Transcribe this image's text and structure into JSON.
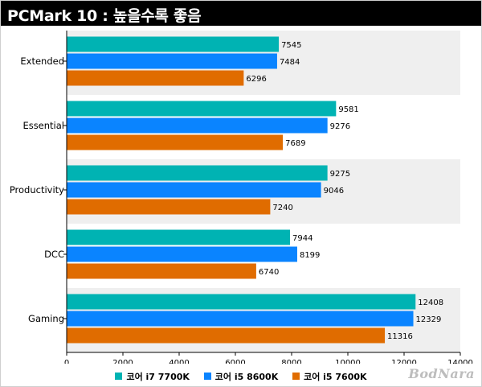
{
  "header": {
    "title": "PCMark 10 : 높을수록 좋음"
  },
  "chart_data": {
    "type": "bar",
    "orientation": "horizontal",
    "title": "PCMark 10 : 높을수록 좋음",
    "categories": [
      "Extended",
      "Essential",
      "Productivity",
      "DCC",
      "Gaming"
    ],
    "series": [
      {
        "name": "코어 i7 7700K",
        "color": "#00b3b3",
        "values": [
          7545,
          9581,
          9275,
          7944,
          12408
        ]
      },
      {
        "name": "코어 i5 8600K",
        "color": "#0a84ff",
        "values": [
          7484,
          9276,
          9046,
          8199,
          12329
        ]
      },
      {
        "name": "코어 i5 7600K",
        "color": "#e06c00",
        "values": [
          6296,
          7689,
          7240,
          6740,
          11316
        ]
      }
    ],
    "xlim": [
      0,
      14000
    ],
    "xticks": [
      0,
      2000,
      4000,
      6000,
      8000,
      10000,
      12000,
      14000
    ],
    "band_color": "#efefef",
    "legend_position": "bottom",
    "grid": false
  },
  "watermark": "BodNara"
}
